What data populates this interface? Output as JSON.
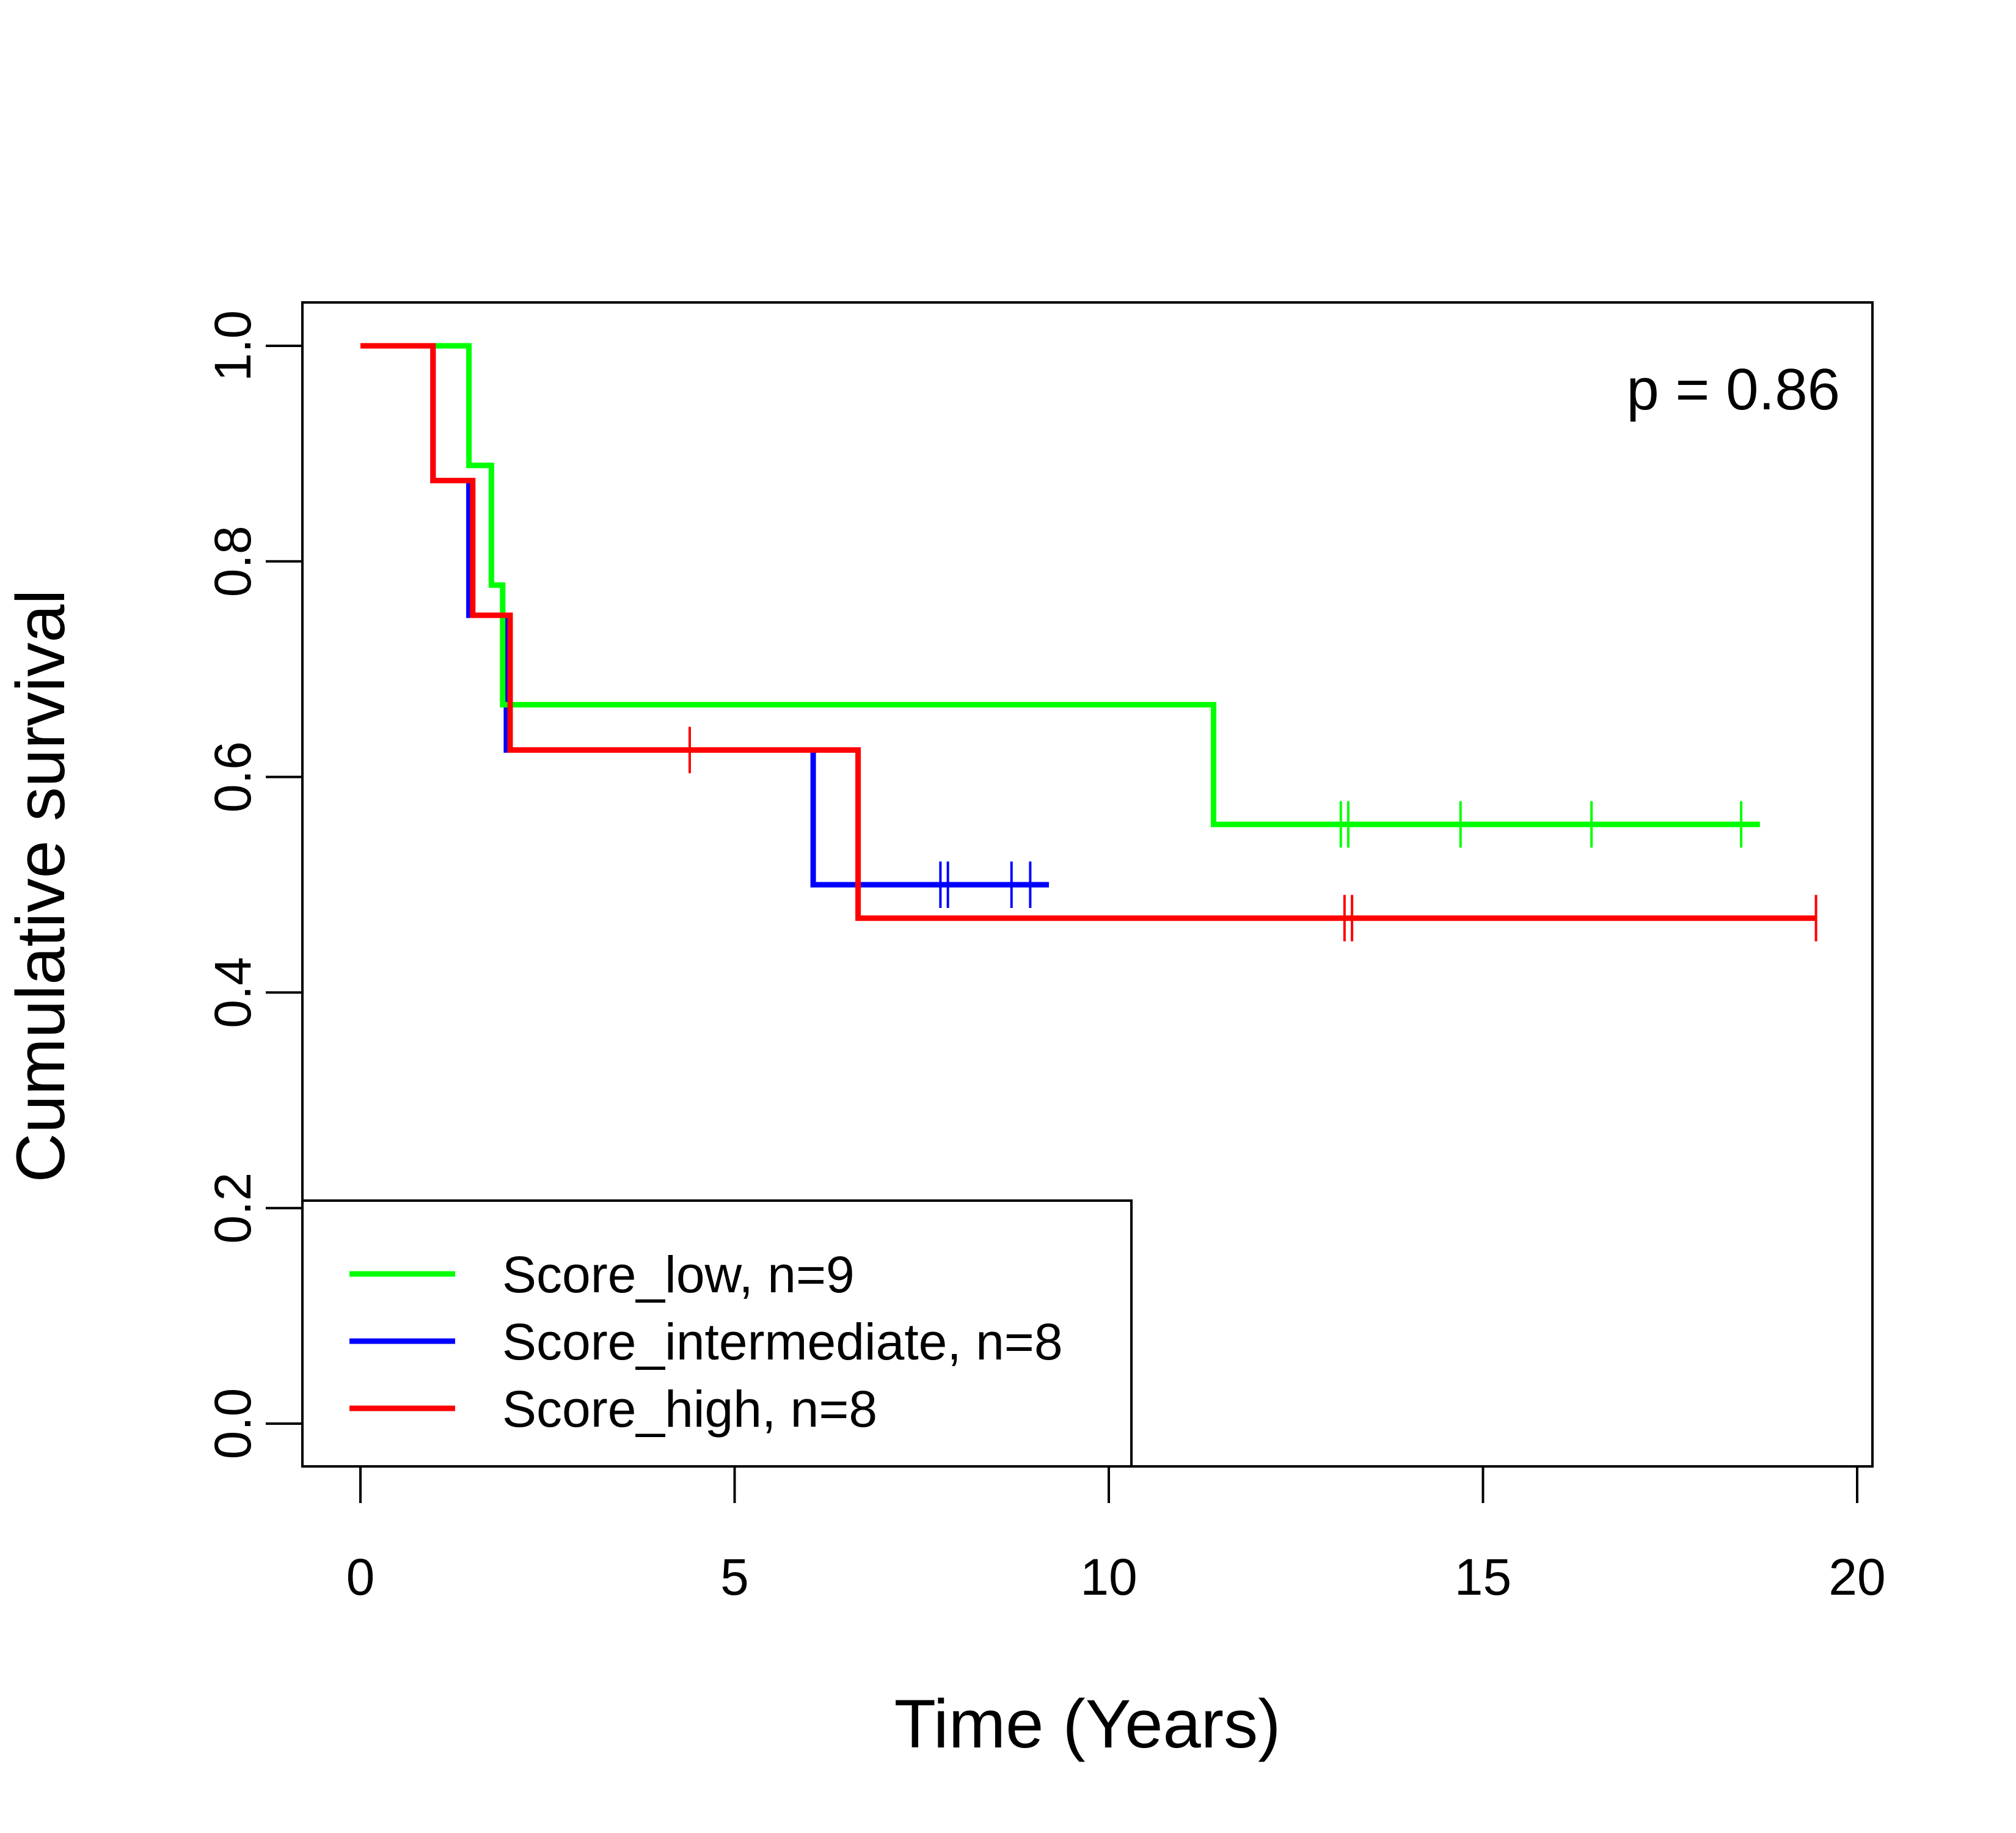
{
  "chart_data": {
    "type": "line",
    "subtype": "kaplan-meier",
    "title": "",
    "xlabel": "Time (Years)",
    "ylabel": "Cumulative survival",
    "xlim": [
      0,
      20
    ],
    "ylim": [
      0,
      1
    ],
    "xticks": [
      0,
      5,
      10,
      15,
      20
    ],
    "xtick_labels": [
      "0",
      "5",
      "10",
      "15",
      "20"
    ],
    "yticks": [
      0,
      0.2,
      0.4,
      0.6,
      0.8,
      1.0
    ],
    "ytick_labels": [
      "0.0",
      "0.2",
      "0.4",
      "0.6",
      "0.8",
      "1.0"
    ],
    "grid": false,
    "legend_position": "bottom-left",
    "annotation": "p = 0.86",
    "series": [
      {
        "name": "Score_low, n=9",
        "color": "#00ff00",
        "x": [
          0,
          1.45,
          1.45,
          1.75,
          1.75,
          1.9,
          1.9,
          11.4,
          11.4,
          18.7
        ],
        "y": [
          1.0,
          1.0,
          0.889,
          0.889,
          0.778,
          0.778,
          0.667,
          0.667,
          0.556,
          0.556
        ],
        "censor_x": [
          13.1,
          13.2,
          14.7,
          16.45,
          18.45
        ],
        "censor_y": [
          0.556,
          0.556,
          0.556,
          0.556,
          0.556
        ]
      },
      {
        "name": "Score_intermediate, n=8",
        "color": "#0000ff",
        "x": [
          0,
          0.97,
          0.97,
          1.45,
          1.45,
          1.95,
          1.95,
          6.05,
          6.05,
          9.2
        ],
        "y": [
          1.0,
          1.0,
          0.875,
          0.875,
          0.75,
          0.75,
          0.625,
          0.625,
          0.5,
          0.5
        ],
        "censor_x": [
          7.75,
          7.85,
          8.7,
          8.95
        ],
        "censor_y": [
          0.5,
          0.5,
          0.5,
          0.5
        ]
      },
      {
        "name": "Score_high, n=8",
        "color": "#ff0000",
        "x": [
          0,
          0.97,
          0.97,
          1.5,
          1.5,
          2.0,
          2.0,
          6.65,
          6.65,
          19.45
        ],
        "y": [
          1.0,
          1.0,
          0.875,
          0.875,
          0.75,
          0.75,
          0.625,
          0.625,
          0.469,
          0.469
        ],
        "censor_x": [
          4.4,
          13.15,
          13.25,
          19.45
        ],
        "censor_y": [
          0.625,
          0.469,
          0.469,
          0.469
        ]
      }
    ]
  }
}
